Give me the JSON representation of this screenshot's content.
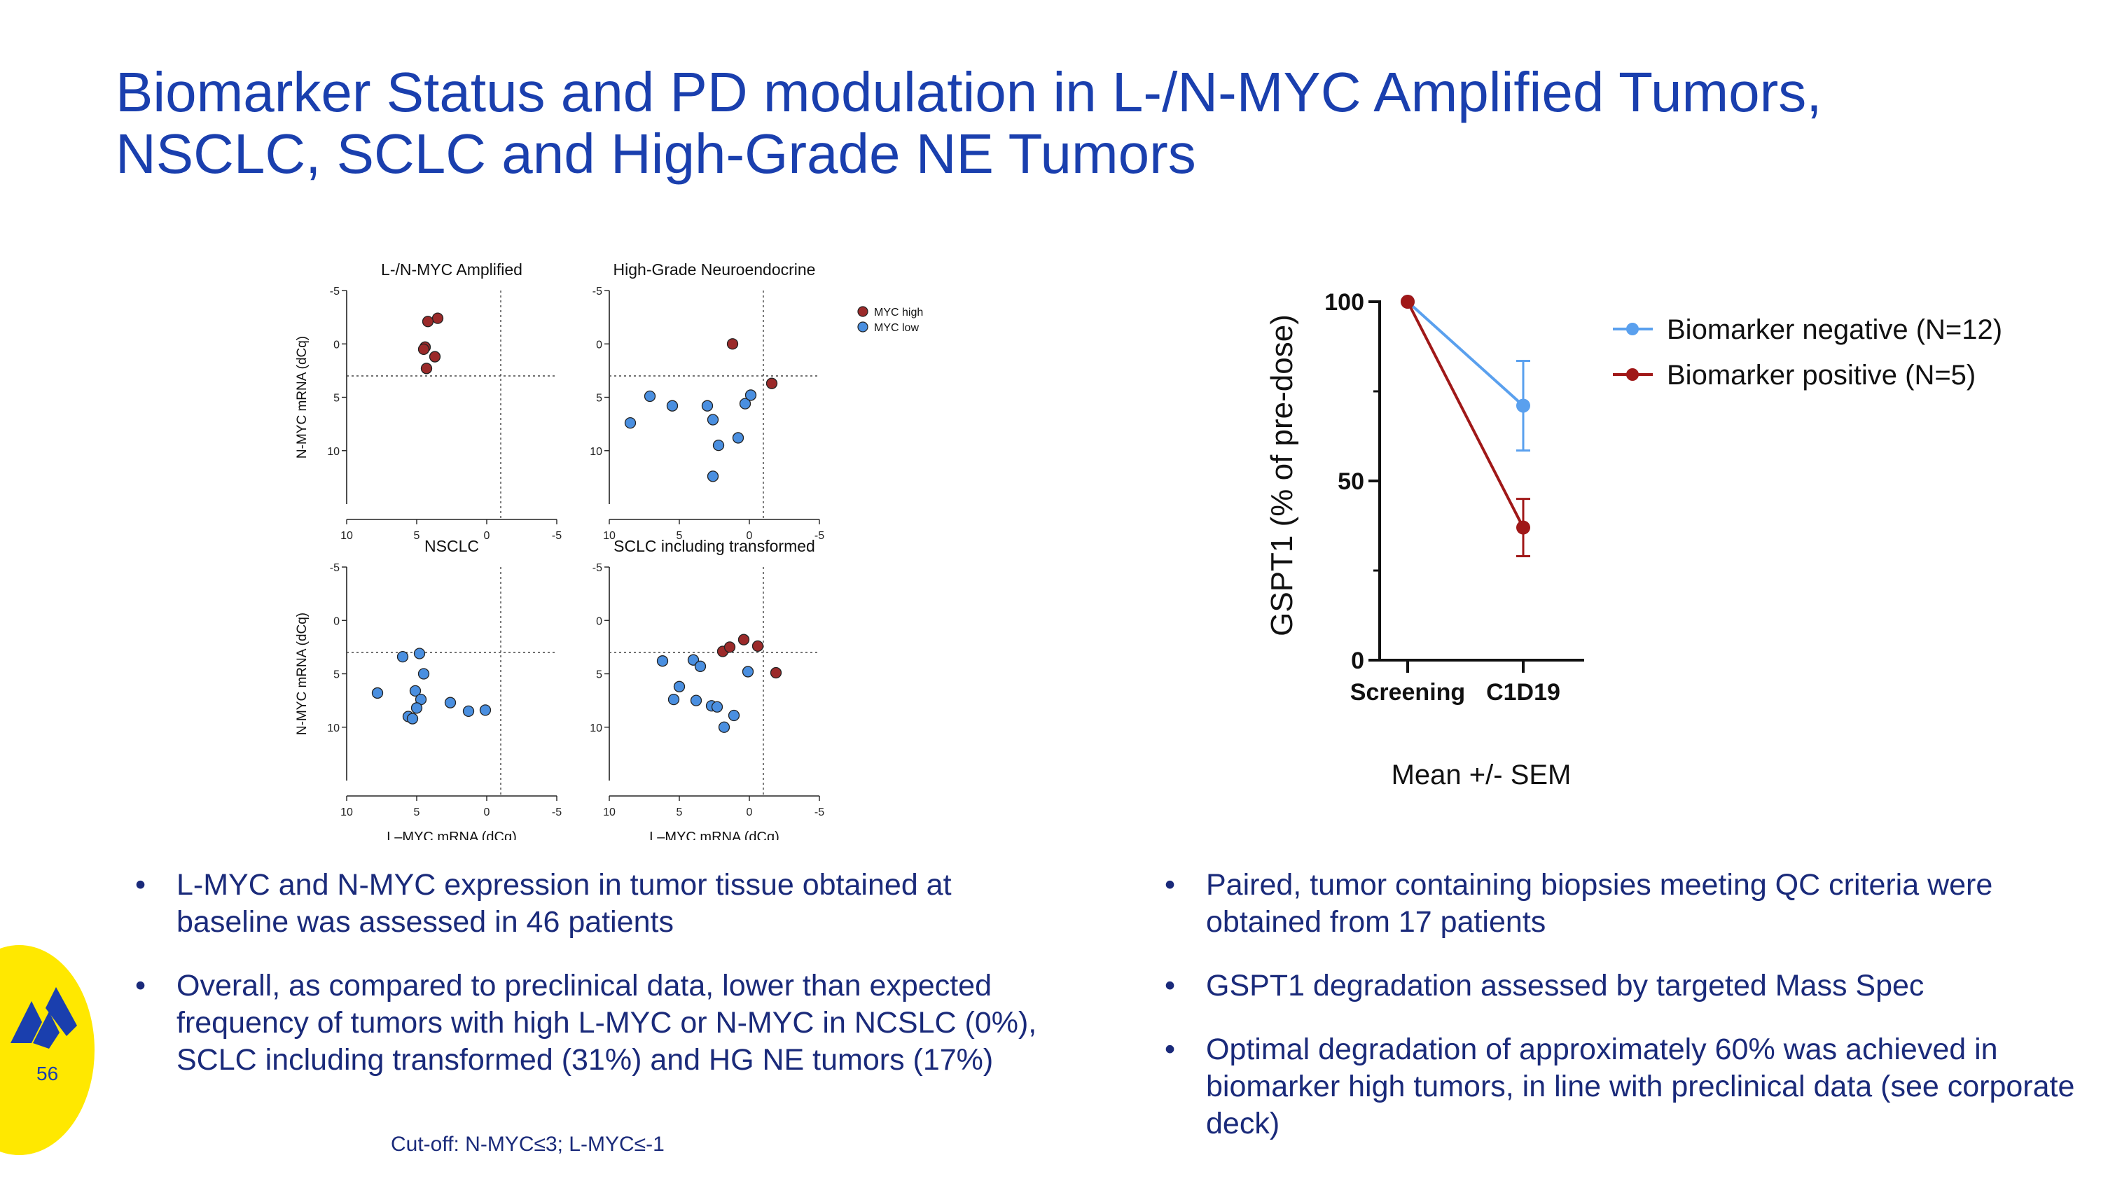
{
  "title": {
    "line1": "Biomarker Status and PD modulation in L-/N-MYC Amplified Tumors,",
    "line2": "NSCLC, SCLC and High-Grade NE Tumors"
  },
  "chart_data": [
    {
      "type": "scatter",
      "title": "L-/N-MYC Amplified",
      "xlabel": "",
      "ylabel": "N-MYC mRNA (dCq)",
      "xlim": [
        10,
        -5
      ],
      "ylim": [
        -5,
        15
      ],
      "xticks": [
        "10",
        "5",
        "0",
        "-5"
      ],
      "yticks": [
        "-5",
        "0",
        "5",
        "10"
      ],
      "cutoff": {
        "x": -1,
        "y": 3
      },
      "series": [
        {
          "name": "MYC high",
          "color": "#9b2a2a",
          "points": [
            [
              3.5,
              -2.4
            ],
            [
              4.2,
              -2.1
            ],
            [
              4.4,
              0.3
            ],
            [
              4.5,
              0.5
            ],
            [
              3.7,
              1.2
            ],
            [
              4.3,
              2.3
            ]
          ]
        },
        {
          "name": "MYC low",
          "color": "#4a8fe0",
          "points": []
        }
      ]
    },
    {
      "type": "scatter",
      "title": "High-Grade Neuroendocrine",
      "xlabel": "",
      "ylabel": "",
      "xlim": [
        10,
        -5
      ],
      "ylim": [
        -5,
        15
      ],
      "xticks": [
        "10",
        "5",
        "0",
        "-5"
      ],
      "yticks": [
        "-5",
        "0",
        "5",
        "10"
      ],
      "cutoff": {
        "x": -1,
        "y": 3
      },
      "series": [
        {
          "name": "MYC high",
          "color": "#9b2a2a",
          "points": [
            [
              1.2,
              0.0
            ],
            [
              -1.6,
              3.7
            ]
          ]
        },
        {
          "name": "MYC low",
          "color": "#4a8fe0",
          "points": [
            [
              8.5,
              7.4
            ],
            [
              7.1,
              4.9
            ],
            [
              5.5,
              5.8
            ],
            [
              3.0,
              5.8
            ],
            [
              2.6,
              7.1
            ],
            [
              2.2,
              9.5
            ],
            [
              2.6,
              12.4
            ],
            [
              0.8,
              8.8
            ],
            [
              0.3,
              5.6
            ],
            [
              -0.1,
              4.8
            ]
          ]
        }
      ],
      "legend": [
        "MYC high",
        "MYC low"
      ]
    },
    {
      "type": "scatter",
      "title": "NSCLC",
      "xlabel": "L–MYC mRNA (dCq)",
      "ylabel": "N-MYC mRNA (dCq)",
      "xlim": [
        10,
        -5
      ],
      "ylim": [
        -5,
        15
      ],
      "xticks": [
        "10",
        "5",
        "0",
        "-5"
      ],
      "yticks": [
        "-5",
        "0",
        "5",
        "10"
      ],
      "cutoff": {
        "x": -1,
        "y": 3
      },
      "series": [
        {
          "name": "MYC high",
          "color": "#9b2a2a",
          "points": []
        },
        {
          "name": "MYC low",
          "color": "#4a8fe0",
          "points": [
            [
              6.0,
              3.4
            ],
            [
              4.8,
              3.1
            ],
            [
              4.5,
              5.0
            ],
            [
              5.1,
              6.6
            ],
            [
              4.7,
              7.4
            ],
            [
              5.0,
              8.2
            ],
            [
              5.6,
              9.0
            ],
            [
              5.3,
              9.2
            ],
            [
              7.8,
              6.8
            ],
            [
              2.6,
              7.7
            ],
            [
              1.3,
              8.5
            ],
            [
              0.1,
              8.4
            ]
          ]
        }
      ]
    },
    {
      "type": "scatter",
      "title": "SCLC including transformed",
      "xlabel": "L–MYC mRNA (dCq)",
      "ylabel": "",
      "xlim": [
        10,
        -5
      ],
      "ylim": [
        -5,
        15
      ],
      "xticks": [
        "10",
        "5",
        "0",
        "-5"
      ],
      "yticks": [
        "-5",
        "0",
        "5",
        "10"
      ],
      "cutoff": {
        "x": -1,
        "y": 3
      },
      "series": [
        {
          "name": "MYC high",
          "color": "#9b2a2a",
          "points": [
            [
              1.9,
              2.9
            ],
            [
              1.4,
              2.5
            ],
            [
              0.4,
              1.8
            ],
            [
              -0.6,
              2.4
            ],
            [
              -1.9,
              4.9
            ]
          ]
        },
        {
          "name": "MYC low",
          "color": "#4a8fe0",
          "points": [
            [
              6.2,
              3.8
            ],
            [
              5.0,
              6.2
            ],
            [
              5.4,
              7.4
            ],
            [
              4.0,
              3.7
            ],
            [
              3.5,
              4.3
            ],
            [
              3.8,
              7.5
            ],
            [
              2.7,
              8.0
            ],
            [
              2.3,
              8.1
            ],
            [
              1.1,
              8.9
            ],
            [
              1.8,
              10.0
            ],
            [
              0.1,
              4.8
            ]
          ]
        }
      ]
    },
    {
      "type": "line",
      "title": "",
      "ylabel": "GSPT1   (% of pre-dose)",
      "categories": [
        "Screening",
        "C1D19"
      ],
      "yticks": [
        "0",
        "50",
        "100"
      ],
      "ylim": [
        0,
        100
      ],
      "series": [
        {
          "name": "Biomarker negative (N=12)",
          "color": "#5aa0ee",
          "values": [
            100,
            71
          ],
          "sem": [
            0,
            12.5
          ]
        },
        {
          "name": "Biomarker positive (N=5)",
          "color": "#a01818",
          "values": [
            100,
            37
          ],
          "sem": [
            0,
            8
          ]
        }
      ],
      "note": "Mean +/- SEM"
    }
  ],
  "bullets_left": [
    "L-MYC and N-MYC expression in tumor tissue obtained at baseline was assessed in 46 patients",
    "Overall, as compared to preclinical data, lower than expected frequency of tumors with high L-MYC or N-MYC in NCSLC (0%), SCLC including transformed (31%) and HG NE tumors (17%)"
  ],
  "bullets_right": [
    "Paired, tumor containing biopsies meeting QC criteria were obtained from 17 patients",
    "GSPT1 degradation assessed by targeted Mass Spec",
    "Optimal degradation of approximately 60% was achieved in biomarker high tumors, in line with preclinical data (see corporate deck)"
  ],
  "bullet_char": "•",
  "cutoff_note": "Cut-off: N-MYC≤3; L-MYC≤-1",
  "page_number": "56",
  "colors": {
    "title": "#1a3fae",
    "body": "#1a2a7a",
    "logo_bg": "#ffe800",
    "logo_mark": "#1a3fae"
  }
}
